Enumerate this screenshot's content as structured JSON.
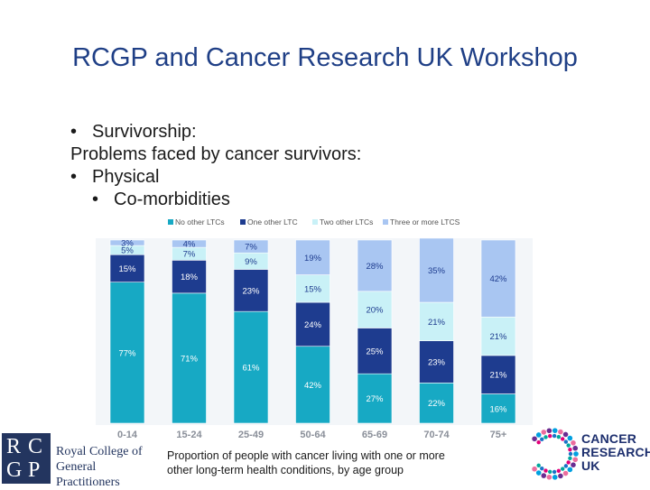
{
  "slide": {
    "title": "RCGP and Cancer Research UK Workshop",
    "bullet1": "Survivorship:",
    "line2": "Problems faced by cancer survivors:",
    "bullet3": "Physical",
    "bullet4": "Co-morbidities",
    "bullet_glyph": "•"
  },
  "caption": {
    "line1": "Proportion of people with cancer living with one or more",
    "line2": "other long-term health conditions, by age group"
  },
  "logos": {
    "rcgp_letters": [
      "R",
      "C",
      "G",
      "P"
    ],
    "rcgp_line1": "Royal College of",
    "rcgp_line2": "General Practitioners",
    "cruk_line1": "CANCER",
    "cruk_line2": "RESEARCH",
    "cruk_line3": "UK"
  },
  "colors": {
    "title": "#1f3f86",
    "s1": "#17a9c4",
    "s2": "#1e3c8f",
    "s3": "#c9f1f7",
    "s4": "#a9c6f2",
    "logo_navy": "#23355f"
  },
  "chart_data": {
    "type": "bar",
    "stacked": true,
    "normalized_percent": true,
    "categories": [
      "0-14",
      "15-24",
      "25-49",
      "50-64",
      "65-69",
      "70-74",
      "75+"
    ],
    "series": [
      {
        "name": "No other LTCs",
        "values": [
          77,
          71,
          61,
          42,
          27,
          22,
          16
        ]
      },
      {
        "name": "One other LTC",
        "values": [
          15,
          18,
          23,
          24,
          25,
          23,
          21
        ]
      },
      {
        "name": "Two other LTCs",
        "values": [
          5,
          7,
          9,
          15,
          20,
          21,
          21
        ]
      },
      {
        "name": "Three or more LTCS",
        "values": [
          3,
          4,
          7,
          19,
          28,
          35,
          42
        ]
      }
    ],
    "value_suffix": "%",
    "ylim": [
      0,
      100
    ],
    "legend_position": "top",
    "title": "",
    "xlabel": "",
    "ylabel": ""
  }
}
